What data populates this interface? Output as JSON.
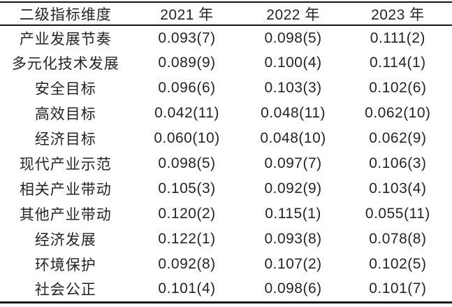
{
  "table": {
    "title_semantic": "secondary-indicator-weights-by-year",
    "columns": [
      "二级指标维度",
      "2021 年",
      "2022 年",
      "2023 年"
    ],
    "rows": [
      {
        "label": "产业发展节奏",
        "values": [
          "0.093(7)",
          "0.098(5)",
          "0.111(2)"
        ]
      },
      {
        "label": "多元化技术发展",
        "values": [
          "0.089(9)",
          "0.100(4)",
          "0.114(1)"
        ]
      },
      {
        "label": "安全目标",
        "values": [
          "0.096(6)",
          "0.103(3)",
          "0.102(6)"
        ]
      },
      {
        "label": "高效目标",
        "values": [
          "0.042(11)",
          "0.048(11)",
          "0.062(10)"
        ]
      },
      {
        "label": "经济目标",
        "values": [
          "0.060(10)",
          "0.048(10)",
          "0.062(9)"
        ]
      },
      {
        "label": "现代产业示范",
        "values": [
          "0.098(5)",
          "0.097(7)",
          "0.106(3)"
        ]
      },
      {
        "label": "相关产业带动",
        "values": [
          "0.105(3)",
          "0.092(9)",
          "0.103(4)"
        ]
      },
      {
        "label": "其他产业带动",
        "values": [
          "0.120(2)",
          "0.115(1)",
          "0.055(11)"
        ]
      },
      {
        "label": "经济发展",
        "values": [
          "0.122(1)",
          "0.093(8)",
          "0.078(8)"
        ]
      },
      {
        "label": "环境保护",
        "values": [
          "0.092(8)",
          "0.107(2)",
          "0.102(5)"
        ]
      },
      {
        "label": "社会公正",
        "values": [
          "0.101(4)",
          "0.098(6)",
          "0.101(7)"
        ]
      }
    ]
  },
  "colors": {
    "background": "#ffffff",
    "text": "#242424",
    "rule": "#161616"
  }
}
